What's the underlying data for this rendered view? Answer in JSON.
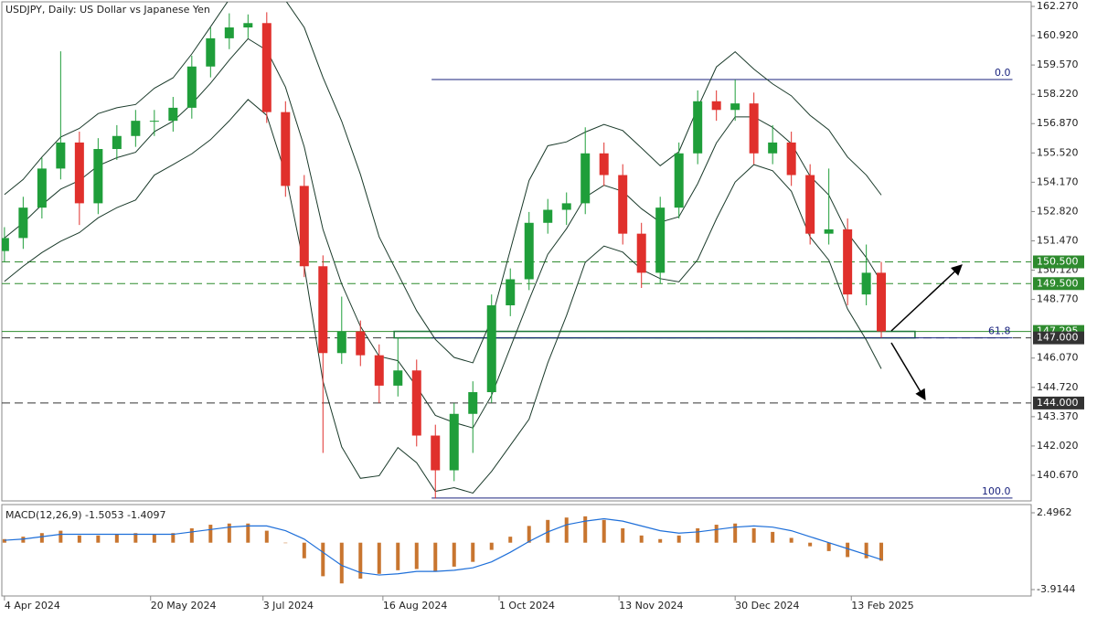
{
  "chart_data": [
    {
      "type": "candlestick",
      "title": "USDJPY, Daily:  US Dollar vs Japanese Yen",
      "up_color": "#1f9e3a",
      "down_color": "#e0302c",
      "x": [
        0,
        5,
        10,
        15,
        20,
        25,
        30,
        35,
        40,
        45,
        50,
        55,
        60,
        65,
        70,
        75,
        80,
        85,
        90,
        95,
        100,
        105,
        110,
        115,
        120,
        125,
        130,
        135,
        140,
        145,
        150,
        155,
        160,
        165,
        170,
        175,
        180,
        185,
        190,
        195,
        200,
        205,
        210,
        215,
        220,
        225,
        230,
        234
      ],
      "open": [
        151.0,
        151.6,
        153.0,
        154.8,
        156.0,
        153.2,
        155.7,
        156.3,
        157.0,
        157.0,
        157.6,
        159.5,
        160.8,
        161.3,
        161.5,
        157.4,
        154.0,
        150.3,
        146.3,
        147.3,
        146.2,
        144.8,
        145.5,
        142.5,
        140.9,
        143.5,
        144.5,
        148.5,
        149.7,
        152.3,
        152.9,
        153.2,
        155.5,
        154.5,
        151.8,
        150.0,
        153.0,
        155.5,
        157.9,
        157.5,
        157.8,
        155.5,
        156.0,
        154.5,
        151.8,
        152.0,
        149.0,
        150.0
      ],
      "high": [
        152.1,
        153.5,
        155.3,
        160.2,
        156.5,
        156.2,
        156.8,
        157.5,
        157.5,
        158.1,
        160.0,
        161.3,
        161.95,
        161.9,
        162.0,
        157.9,
        154.5,
        150.8,
        148.9,
        147.8,
        146.7,
        147.0,
        146.0,
        143.0,
        144.0,
        145.0,
        149.0,
        150.2,
        152.8,
        153.4,
        153.7,
        156.7,
        156.0,
        155.0,
        152.3,
        153.5,
        156.0,
        158.4,
        158.4,
        158.9,
        158.3,
        156.8,
        156.5,
        155.0,
        154.8,
        152.5,
        151.3,
        150.5
      ],
      "low": [
        150.5,
        151.1,
        152.5,
        154.3,
        152.2,
        152.7,
        155.2,
        155.8,
        156.3,
        156.5,
        157.1,
        159.0,
        160.3,
        160.8,
        156.9,
        153.5,
        149.8,
        141.7,
        145.8,
        145.7,
        144.0,
        144.3,
        142.0,
        139.6,
        140.4,
        141.7,
        144.0,
        148.0,
        149.2,
        151.8,
        152.2,
        152.7,
        154.0,
        151.3,
        149.3,
        149.5,
        152.5,
        155.0,
        157.0,
        157.0,
        155.0,
        155.0,
        154.0,
        151.3,
        151.3,
        148.5,
        148.5,
        147.0
      ],
      "close": [
        151.6,
        153.0,
        154.8,
        156.0,
        153.2,
        155.7,
        156.3,
        157.0,
        157.0,
        157.6,
        159.5,
        160.8,
        161.3,
        161.5,
        157.4,
        154.0,
        150.3,
        146.3,
        147.3,
        146.2,
        144.8,
        145.5,
        142.5,
        140.9,
        143.5,
        144.5,
        148.5,
        149.7,
        152.3,
        152.9,
        153.2,
        155.5,
        154.5,
        151.8,
        150.0,
        153.0,
        155.5,
        157.9,
        157.5,
        157.8,
        155.5,
        156.0,
        154.5,
        151.8,
        152.0,
        149.0,
        150.0,
        147.3
      ],
      "bands": [
        {
          "color": "#1a3a2a",
          "values": [
            153.6,
            154.3,
            155.33,
            156.25,
            156.65,
            157.33,
            157.6,
            157.75,
            158.5,
            158.98,
            160.08,
            161.33,
            162.6,
            163.58,
            163.25,
            162.55,
            161.3,
            159.0,
            156.98,
            154.53,
            151.65,
            149.95,
            148.25,
            146.93,
            146.1,
            145.85,
            147.85,
            151.05,
            154.25,
            155.85,
            156.03,
            156.48,
            156.83,
            156.55,
            155.75,
            154.93,
            155.58,
            157.6,
            159.48,
            160.18,
            159.38,
            158.7,
            158.15,
            157.25,
            156.58,
            155.33,
            154.5,
            153.58
          ]
        },
        {
          "color": "#1a3a2a",
          "values": [
            151.6,
            152.3,
            153.13,
            153.85,
            154.25,
            154.93,
            155.3,
            155.55,
            156.5,
            156.98,
            157.78,
            158.73,
            159.8,
            160.78,
            160.25,
            158.55,
            155.8,
            152.0,
            149.48,
            147.53,
            146.15,
            145.95,
            144.75,
            143.43,
            143.1,
            142.85,
            144.35,
            146.55,
            148.75,
            150.85,
            152.03,
            153.48,
            154.03,
            153.75,
            152.95,
            152.33,
            152.58,
            154.1,
            155.98,
            157.18,
            157.18,
            156.7,
            155.95,
            154.45,
            153.58,
            151.83,
            150.7,
            149.58
          ]
        },
        {
          "color": "#1a3a2a",
          "values": [
            149.6,
            150.3,
            150.93,
            151.45,
            151.85,
            152.53,
            153.0,
            153.35,
            154.5,
            154.98,
            155.48,
            156.13,
            157.0,
            157.98,
            157.25,
            154.55,
            150.3,
            145.0,
            141.98,
            140.53,
            140.65,
            141.95,
            141.25,
            139.93,
            140.1,
            139.85,
            140.85,
            142.05,
            143.25,
            145.85,
            148.03,
            150.48,
            151.23,
            150.95,
            150.15,
            149.73,
            149.58,
            150.6,
            152.48,
            154.18,
            154.98,
            154.7,
            153.75,
            151.65,
            150.58,
            148.33,
            146.9,
            145.58
          ]
        }
      ],
      "levels": [
        {
          "value": 150.5,
          "label": "150.500",
          "color": "#2e8b2e",
          "style": "dashed"
        },
        {
          "value": 149.5,
          "label": "149.500",
          "color": "#2e8b2e",
          "style": "dashed"
        },
        {
          "value": 147.295,
          "label": "147.295",
          "color": "#2e8b2e",
          "style": "solid"
        },
        {
          "value": 147.0,
          "label": "147.000",
          "color": "#333333",
          "style": "dashed"
        },
        {
          "value": 144.0,
          "label": "144.000",
          "color": "#333333",
          "style": "dashed"
        }
      ],
      "zone": {
        "low": 147.0,
        "high": 147.3,
        "start": 104,
        "end": 243,
        "color": "#1e7a3a"
      },
      "fib": {
        "start": 114,
        "end": 269,
        "color": "#1a237e",
        "levels": [
          {
            "value": 158.9,
            "label": "0.0"
          },
          {
            "value": 147.0,
            "label": "61.8"
          },
          {
            "value": 139.62,
            "label": "100.0"
          }
        ]
      },
      "xlim": [
        -0.7,
        274
      ],
      "ylim": [
        139.49,
        162.48
      ],
      "yticks": [
        {
          "value": 162.27,
          "label": "162.270"
        },
        {
          "value": 160.92,
          "label": "160.920"
        },
        {
          "value": 159.57,
          "label": "159.570"
        },
        {
          "value": 158.22,
          "label": "158.220"
        },
        {
          "value": 156.87,
          "label": "156.870"
        },
        {
          "value": 155.52,
          "label": "155.520"
        },
        {
          "value": 154.17,
          "label": "154.170"
        },
        {
          "value": 152.82,
          "label": "152.820"
        },
        {
          "value": 151.47,
          "label": "151.470"
        },
        {
          "value": 150.12,
          "label": "150.120"
        },
        {
          "value": 148.77,
          "label": "148.770"
        },
        {
          "value": 146.07,
          "label": "146.070"
        },
        {
          "value": 144.72,
          "label": "144.720"
        },
        {
          "value": 143.37,
          "label": "143.370"
        },
        {
          "value": 142.02,
          "label": "142.020"
        },
        {
          "value": 140.67,
          "label": "140.670"
        }
      ],
      "xticks": [
        {
          "value": 0,
          "label": "4 Apr 2024"
        },
        {
          "value": 39,
          "label": "20 May 2024"
        },
        {
          "value": 69,
          "label": "3 Jul 2024"
        },
        {
          "value": 101,
          "label": "16 Aug 2024"
        },
        {
          "value": 132,
          "label": "1 Oct 2024"
        },
        {
          "value": 164,
          "label": "13 Nov 2024"
        },
        {
          "value": 195,
          "label": "30 Dec 2024"
        },
        {
          "value": 226,
          "label": "13 Feb 2025"
        }
      ]
    },
    {
      "type": "macd",
      "title": "MACD(12,26,9) -1.5053 -1.4097",
      "x": [
        0,
        5,
        10,
        15,
        20,
        25,
        30,
        35,
        40,
        45,
        50,
        55,
        60,
        65,
        70,
        75,
        80,
        85,
        90,
        95,
        100,
        105,
        110,
        115,
        120,
        125,
        130,
        135,
        140,
        145,
        150,
        155,
        160,
        165,
        170,
        175,
        180,
        185,
        190,
        195,
        200,
        205,
        210,
        215,
        220,
        225,
        230,
        234
      ],
      "series": [
        {
          "kind": "histogram",
          "color": "#c8752f",
          "values": [
            0.3,
            0.5,
            0.8,
            1.0,
            0.6,
            0.6,
            0.7,
            0.8,
            0.7,
            0.8,
            1.2,
            1.5,
            1.6,
            1.6,
            1.0,
            0.0,
            -1.3,
            -2.8,
            -3.4,
            -3.0,
            -2.6,
            -2.3,
            -2.2,
            -2.4,
            -2.0,
            -1.6,
            -0.6,
            0.5,
            1.4,
            1.9,
            2.1,
            2.2,
            1.9,
            1.2,
            0.6,
            0.3,
            0.6,
            1.2,
            1.5,
            1.6,
            1.2,
            0.9,
            0.4,
            -0.3,
            -0.7,
            -1.2,
            -1.3,
            -1.5053
          ]
        },
        {
          "kind": "line",
          "color": "#1e6fd9",
          "values": [
            0.2,
            0.3,
            0.5,
            0.7,
            0.7,
            0.7,
            0.7,
            0.7,
            0.7,
            0.7,
            0.9,
            1.1,
            1.3,
            1.4,
            1.4,
            1.0,
            0.3,
            -0.8,
            -1.9,
            -2.5,
            -2.7,
            -2.6,
            -2.4,
            -2.4,
            -2.3,
            -2.1,
            -1.6,
            -0.8,
            0.1,
            0.9,
            1.5,
            1.8,
            2.0,
            1.8,
            1.4,
            1.0,
            0.8,
            0.9,
            1.1,
            1.3,
            1.4,
            1.3,
            1.0,
            0.5,
            0.0,
            -0.5,
            -1.0,
            -1.4097
          ]
        }
      ],
      "xlim": [
        -0.7,
        274
      ],
      "ylim": [
        -4.449,
        3.183
      ],
      "yticks": [
        2.4962,
        -3.9144
      ]
    }
  ]
}
